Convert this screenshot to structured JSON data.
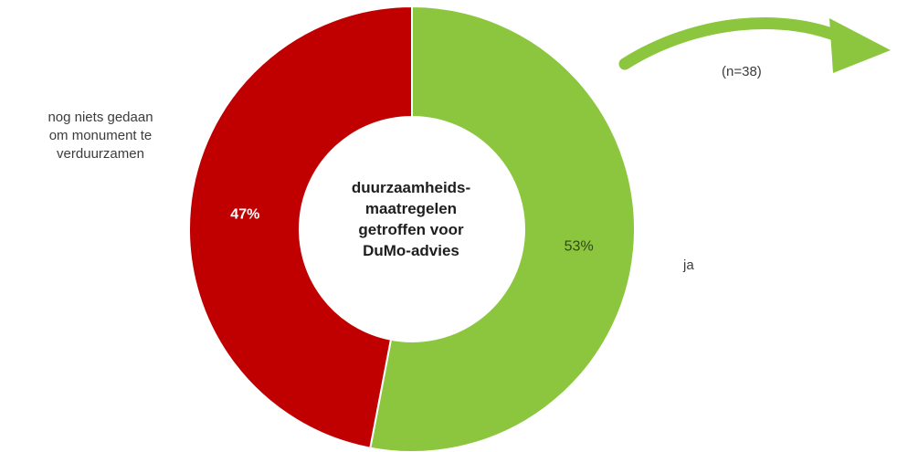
{
  "chart_data": {
    "type": "pie",
    "variant": "donut",
    "center_label": "duurzaamheids-\nmaatregelen\ngetroffen voor\nDuMo-advies",
    "note": "(n=38)",
    "slices": [
      {
        "label": "ja",
        "value": 53,
        "display": "53%",
        "color": "#8cc63f",
        "label_color": "#2f4a10"
      },
      {
        "label": "nog niets gedaan\nom monument te\nverduurzamen",
        "value": 47,
        "display": "47%",
        "color": "#c00000",
        "label_color": "#ffffff"
      }
    ],
    "legend": "none"
  },
  "arrow": {
    "color": "#8cc63f",
    "icon": "curved-arrow-right-icon"
  }
}
